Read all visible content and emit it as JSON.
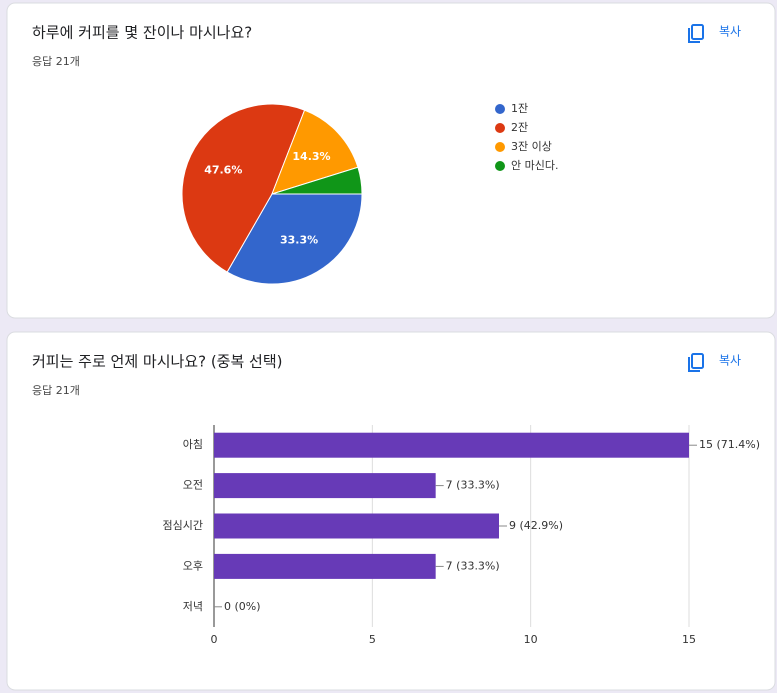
{
  "chart_data": [
    {
      "type": "pie",
      "title": "하루에 커피를 몇 잔이나 마시나요?",
      "subtitle": "응답 21개",
      "copy_button": "복사",
      "categories": [
        "1잔",
        "2잔",
        "3잔 이상",
        "안 마신다."
      ],
      "values": [
        33.3,
        47.6,
        14.3,
        4.8
      ],
      "value_labels": [
        "33.3%",
        "47.6%",
        "14.3%",
        null
      ],
      "colors": [
        "#3366cc",
        "#dc3912",
        "#ff9900",
        "#109618"
      ],
      "legend": "right"
    },
    {
      "type": "bar",
      "orientation": "horizontal",
      "title": "커피는 주로 언제 마시나요? (중복 선택)",
      "subtitle": "응답 21개",
      "copy_button": "복사",
      "categories": [
        "아침",
        "오전",
        "점심시간",
        "오후",
        "저녁"
      ],
      "values": [
        15,
        7,
        9,
        7,
        0
      ],
      "value_labels": [
        "15 (71.4%)",
        "7 (33.3%)",
        "9 (42.9%)",
        "7 (33.3%)",
        "0 (0%)"
      ],
      "color": "#673ab7",
      "xlim": [
        0,
        15
      ],
      "xticks": [
        0,
        5,
        10,
        15
      ],
      "grid": true
    }
  ]
}
